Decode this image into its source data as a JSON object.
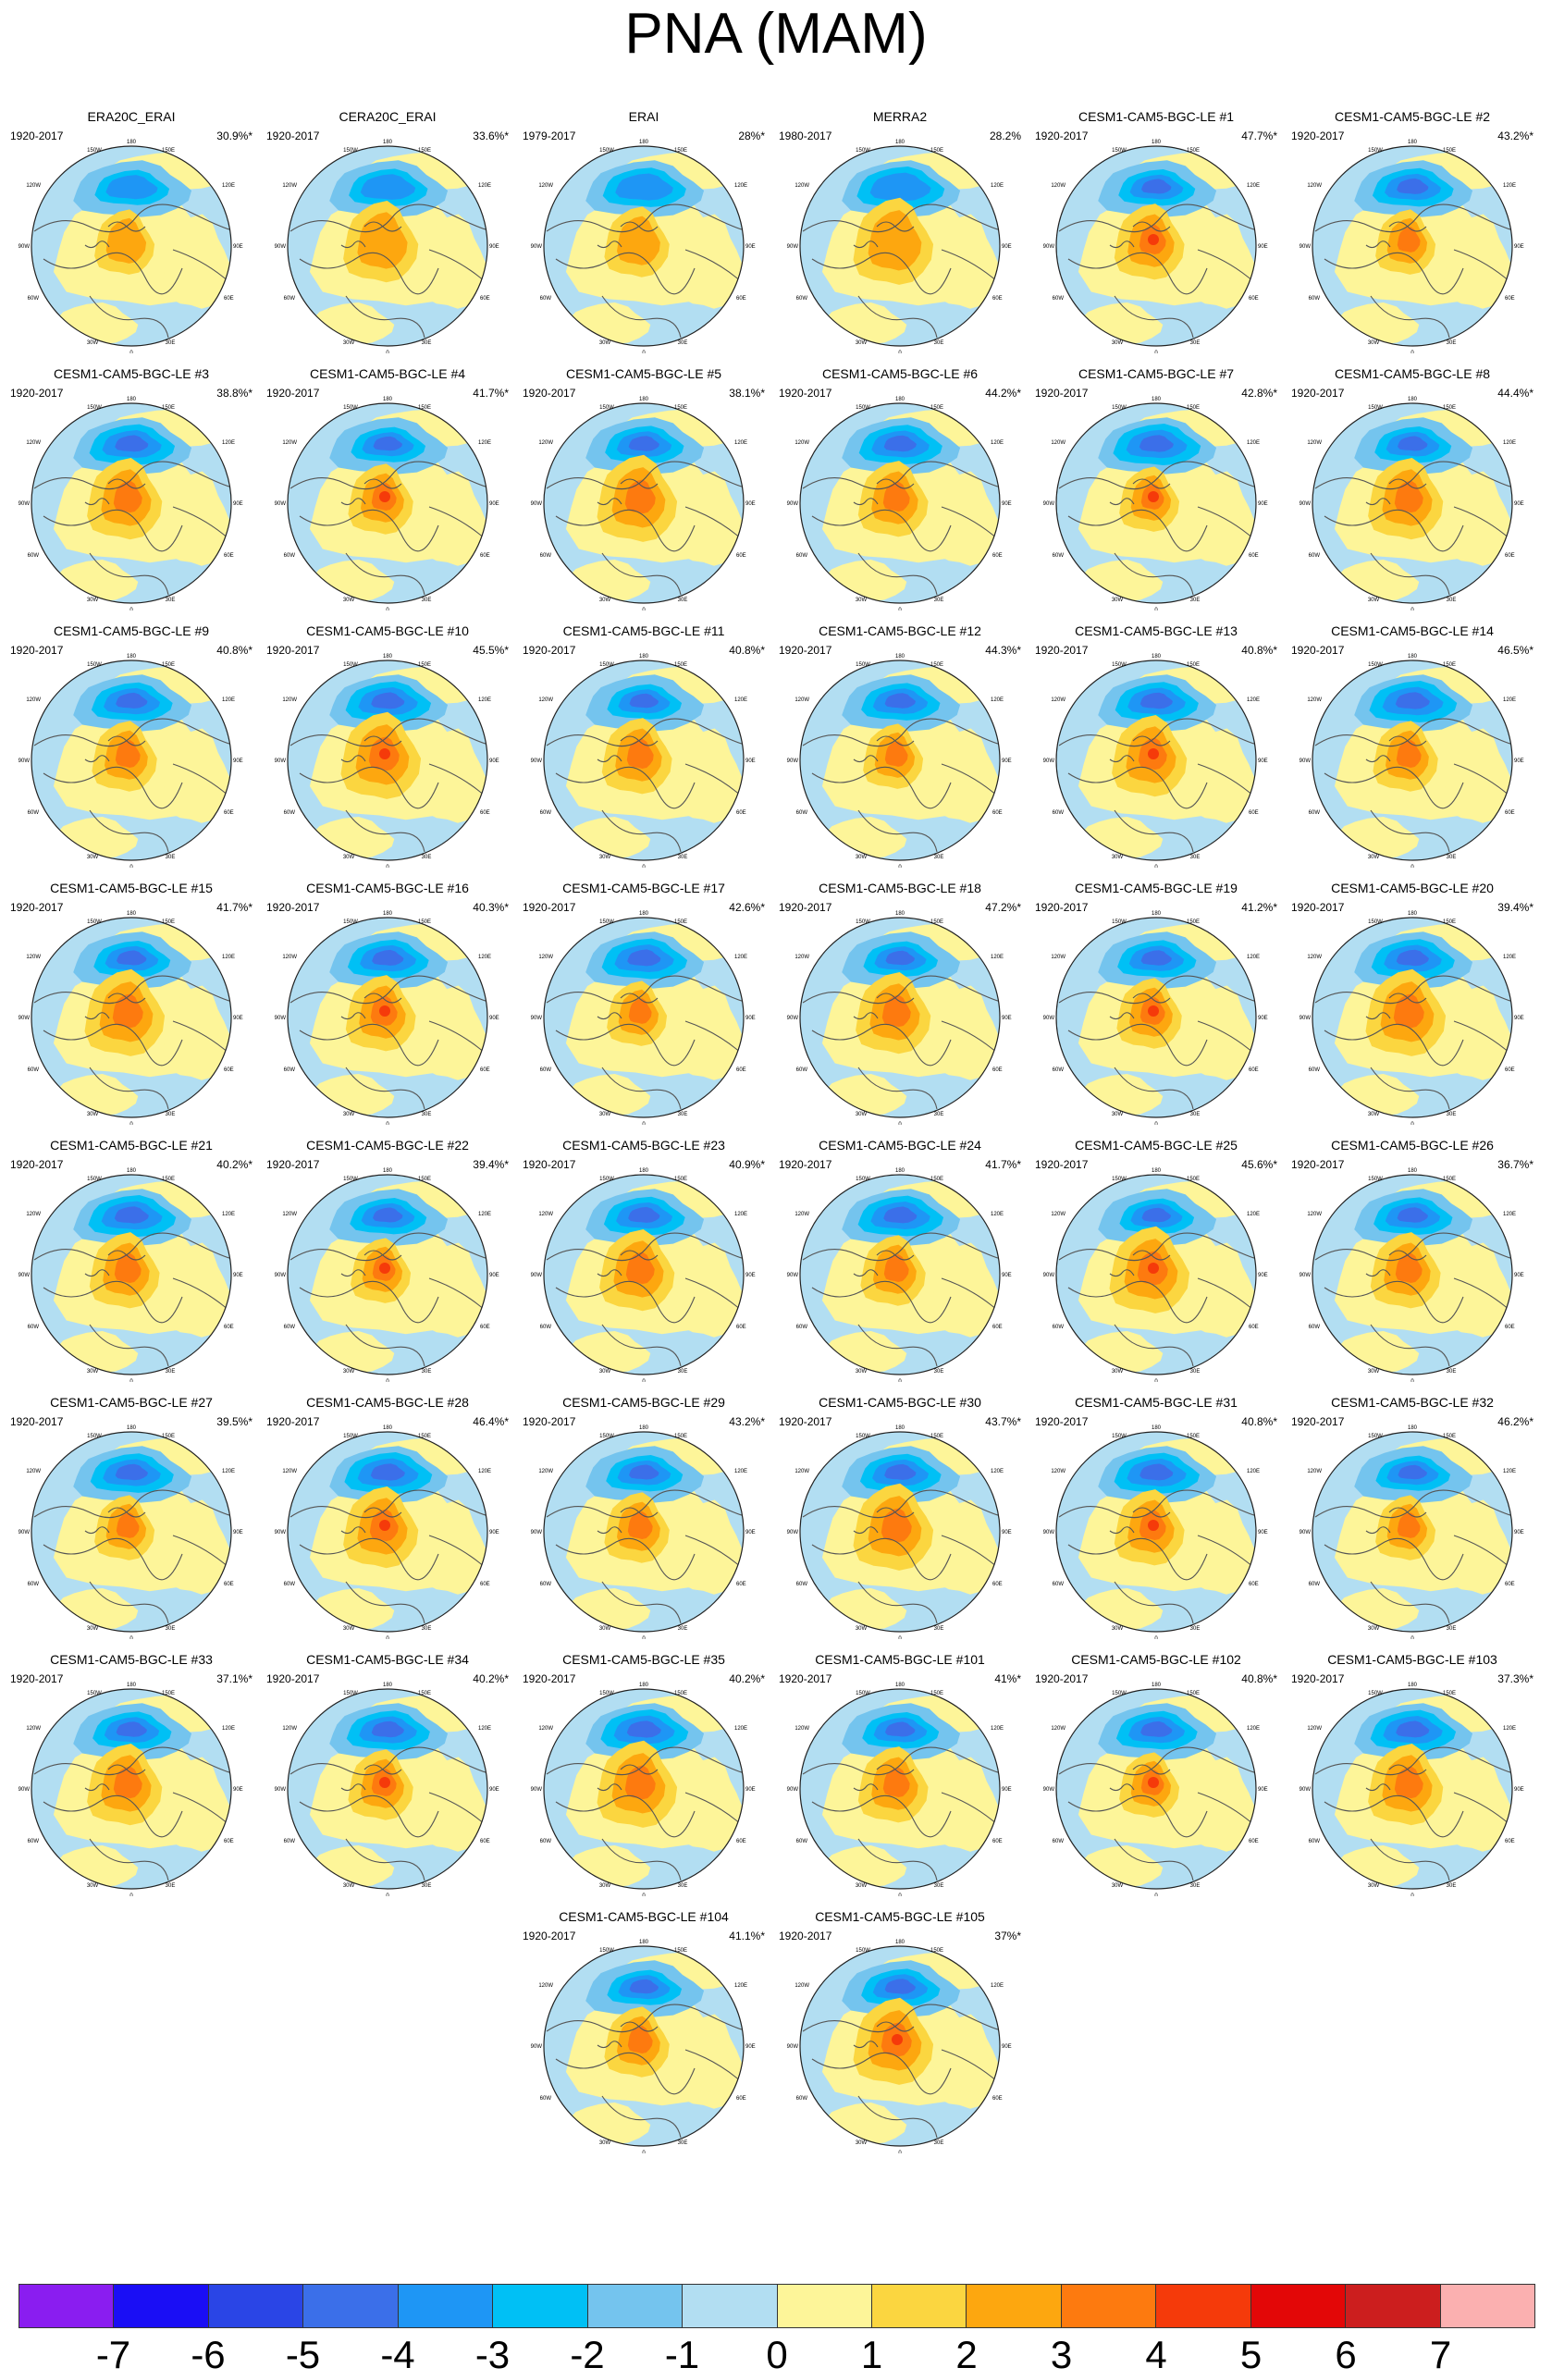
{
  "title": "PNA (MAM)",
  "lon_labels": [
    "180",
    "150W",
    "150E",
    "120W",
    "120E",
    "90W",
    "90E",
    "60W",
    "60E",
    "30W",
    "30E",
    "0"
  ],
  "panels": [
    {
      "name": "ERA20C_ERAI",
      "period": "1920-2017",
      "variance": "30.9%*"
    },
    {
      "name": "CERA20C_ERAI",
      "period": "1920-2017",
      "variance": "33.6%*"
    },
    {
      "name": "ERAI",
      "period": "1979-2017",
      "variance": "28%*"
    },
    {
      "name": "MERRA2",
      "period": "1980-2017",
      "variance": "28.2%"
    },
    {
      "name": "CESM1-CAM5-BGC-LE #1",
      "period": "1920-2017",
      "variance": "47.7%*"
    },
    {
      "name": "CESM1-CAM5-BGC-LE #2",
      "period": "1920-2017",
      "variance": "43.2%*"
    },
    {
      "name": "CESM1-CAM5-BGC-LE #3",
      "period": "1920-2017",
      "variance": "38.8%*"
    },
    {
      "name": "CESM1-CAM5-BGC-LE #4",
      "period": "1920-2017",
      "variance": "41.7%*"
    },
    {
      "name": "CESM1-CAM5-BGC-LE #5",
      "period": "1920-2017",
      "variance": "38.1%*"
    },
    {
      "name": "CESM1-CAM5-BGC-LE #6",
      "period": "1920-2017",
      "variance": "44.2%*"
    },
    {
      "name": "CESM1-CAM5-BGC-LE #7",
      "period": "1920-2017",
      "variance": "42.8%*"
    },
    {
      "name": "CESM1-CAM5-BGC-LE #8",
      "period": "1920-2017",
      "variance": "44.4%*"
    },
    {
      "name": "CESM1-CAM5-BGC-LE #9",
      "period": "1920-2017",
      "variance": "40.8%*"
    },
    {
      "name": "CESM1-CAM5-BGC-LE #10",
      "period": "1920-2017",
      "variance": "45.5%*"
    },
    {
      "name": "CESM1-CAM5-BGC-LE #11",
      "period": "1920-2017",
      "variance": "40.8%*"
    },
    {
      "name": "CESM1-CAM5-BGC-LE #12",
      "period": "1920-2017",
      "variance": "44.3%*"
    },
    {
      "name": "CESM1-CAM5-BGC-LE #13",
      "period": "1920-2017",
      "variance": "40.8%*"
    },
    {
      "name": "CESM1-CAM5-BGC-LE #14",
      "period": "1920-2017",
      "variance": "46.5%*"
    },
    {
      "name": "CESM1-CAM5-BGC-LE #15",
      "period": "1920-2017",
      "variance": "41.7%*"
    },
    {
      "name": "CESM1-CAM5-BGC-LE #16",
      "period": "1920-2017",
      "variance": "40.3%*"
    },
    {
      "name": "CESM1-CAM5-BGC-LE #17",
      "period": "1920-2017",
      "variance": "42.6%*"
    },
    {
      "name": "CESM1-CAM5-BGC-LE #18",
      "period": "1920-2017",
      "variance": "47.2%*"
    },
    {
      "name": "CESM1-CAM5-BGC-LE #19",
      "period": "1920-2017",
      "variance": "41.2%*"
    },
    {
      "name": "CESM1-CAM5-BGC-LE #20",
      "period": "1920-2017",
      "variance": "39.4%*"
    },
    {
      "name": "CESM1-CAM5-BGC-LE #21",
      "period": "1920-2017",
      "variance": "40.2%*"
    },
    {
      "name": "CESM1-CAM5-BGC-LE #22",
      "period": "1920-2017",
      "variance": "39.4%*"
    },
    {
      "name": "CESM1-CAM5-BGC-LE #23",
      "period": "1920-2017",
      "variance": "40.9%*"
    },
    {
      "name": "CESM1-CAM5-BGC-LE #24",
      "period": "1920-2017",
      "variance": "41.7%*"
    },
    {
      "name": "CESM1-CAM5-BGC-LE #25",
      "period": "1920-2017",
      "variance": "45.6%*"
    },
    {
      "name": "CESM1-CAM5-BGC-LE #26",
      "period": "1920-2017",
      "variance": "36.7%*"
    },
    {
      "name": "CESM1-CAM5-BGC-LE #27",
      "period": "1920-2017",
      "variance": "39.5%*"
    },
    {
      "name": "CESM1-CAM5-BGC-LE #28",
      "period": "1920-2017",
      "variance": "46.4%*"
    },
    {
      "name": "CESM1-CAM5-BGC-LE #29",
      "period": "1920-2017",
      "variance": "43.2%*"
    },
    {
      "name": "CESM1-CAM5-BGC-LE #30",
      "period": "1920-2017",
      "variance": "43.7%*"
    },
    {
      "name": "CESM1-CAM5-BGC-LE #31",
      "period": "1920-2017",
      "variance": "40.8%*"
    },
    {
      "name": "CESM1-CAM5-BGC-LE #32",
      "period": "1920-2017",
      "variance": "46.2%*"
    },
    {
      "name": "CESM1-CAM5-BGC-LE #33",
      "period": "1920-2017",
      "variance": "37.1%*"
    },
    {
      "name": "CESM1-CAM5-BGC-LE #34",
      "period": "1920-2017",
      "variance": "40.2%*"
    },
    {
      "name": "CESM1-CAM5-BGC-LE #35",
      "period": "1920-2017",
      "variance": "40.2%*"
    },
    {
      "name": "CESM1-CAM5-BGC-LE #101",
      "period": "1920-2017",
      "variance": "41%*"
    },
    {
      "name": "CESM1-CAM5-BGC-LE #102",
      "period": "1920-2017",
      "variance": "40.8%*"
    },
    {
      "name": "CESM1-CAM5-BGC-LE #103",
      "period": "1920-2017",
      "variance": "37.3%*"
    },
    {
      "name": "CESM1-CAM5-BGC-LE #104",
      "period": "1920-2017",
      "variance": "41.1%*"
    },
    {
      "name": "CESM1-CAM5-BGC-LE #105",
      "period": "1920-2017",
      "variance": "37%*"
    }
  ],
  "colorbar": {
    "labels": [
      "-7",
      "-6",
      "-5",
      "-4",
      "-3",
      "-2",
      "-1",
      "0",
      "1",
      "2",
      "3",
      "4",
      "5",
      "6",
      "7"
    ],
    "colors": [
      "#8a1df0",
      "#1a0ef5",
      "#2a45e6",
      "#3b6fe9",
      "#1e96f5",
      "#00c0f5",
      "#74c4ee",
      "#b2def2",
      "#fdf599",
      "#fbd640",
      "#fda70f",
      "#fd7a0f",
      "#f53a0a",
      "#e30707",
      "#cc1e1e",
      "#fbb0b0"
    ]
  }
}
